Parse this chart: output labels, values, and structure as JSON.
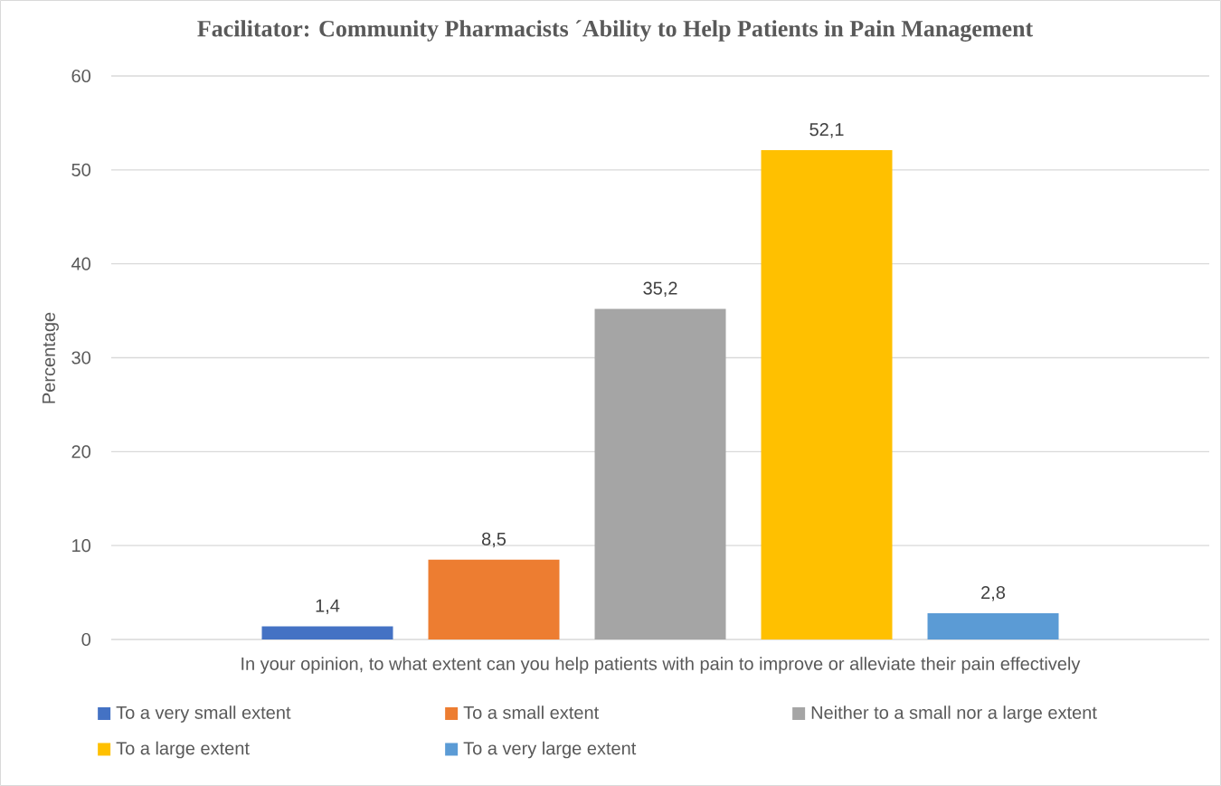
{
  "chart_data": {
    "type": "bar",
    "title": "Facilitator: Community Pharmacists ´Ability to Help Patients in Pain Management",
    "ylabel": "Percentage",
    "categories": [
      "In your opinion, to what extent can you help patients with pain to improve or alleviate their pain effectively"
    ],
    "series": [
      {
        "name": "To a very small extent",
        "color": "#4472c4",
        "values": [
          1.4
        ],
        "value_labels": [
          "1,4"
        ]
      },
      {
        "name": "To a small extent",
        "color": "#ed7d31",
        "values": [
          8.5
        ],
        "value_labels": [
          "8,5"
        ]
      },
      {
        "name": "Neither to a small nor a large extent",
        "color": "#a5a5a5",
        "values": [
          35.2
        ],
        "value_labels": [
          "35,2"
        ]
      },
      {
        "name": "To a large extent",
        "color": "#ffc000",
        "values": [
          52.1
        ],
        "value_labels": [
          "52,1"
        ]
      },
      {
        "name": "To a very large extent",
        "color": "#5b9bd5",
        "values": [
          2.8
        ],
        "value_labels": [
          "2,8"
        ]
      }
    ],
    "ylim": [
      0,
      60
    ],
    "yticks": [
      0,
      10,
      20,
      30,
      40,
      50,
      60
    ],
    "grid": "y",
    "legend": "bottom"
  }
}
